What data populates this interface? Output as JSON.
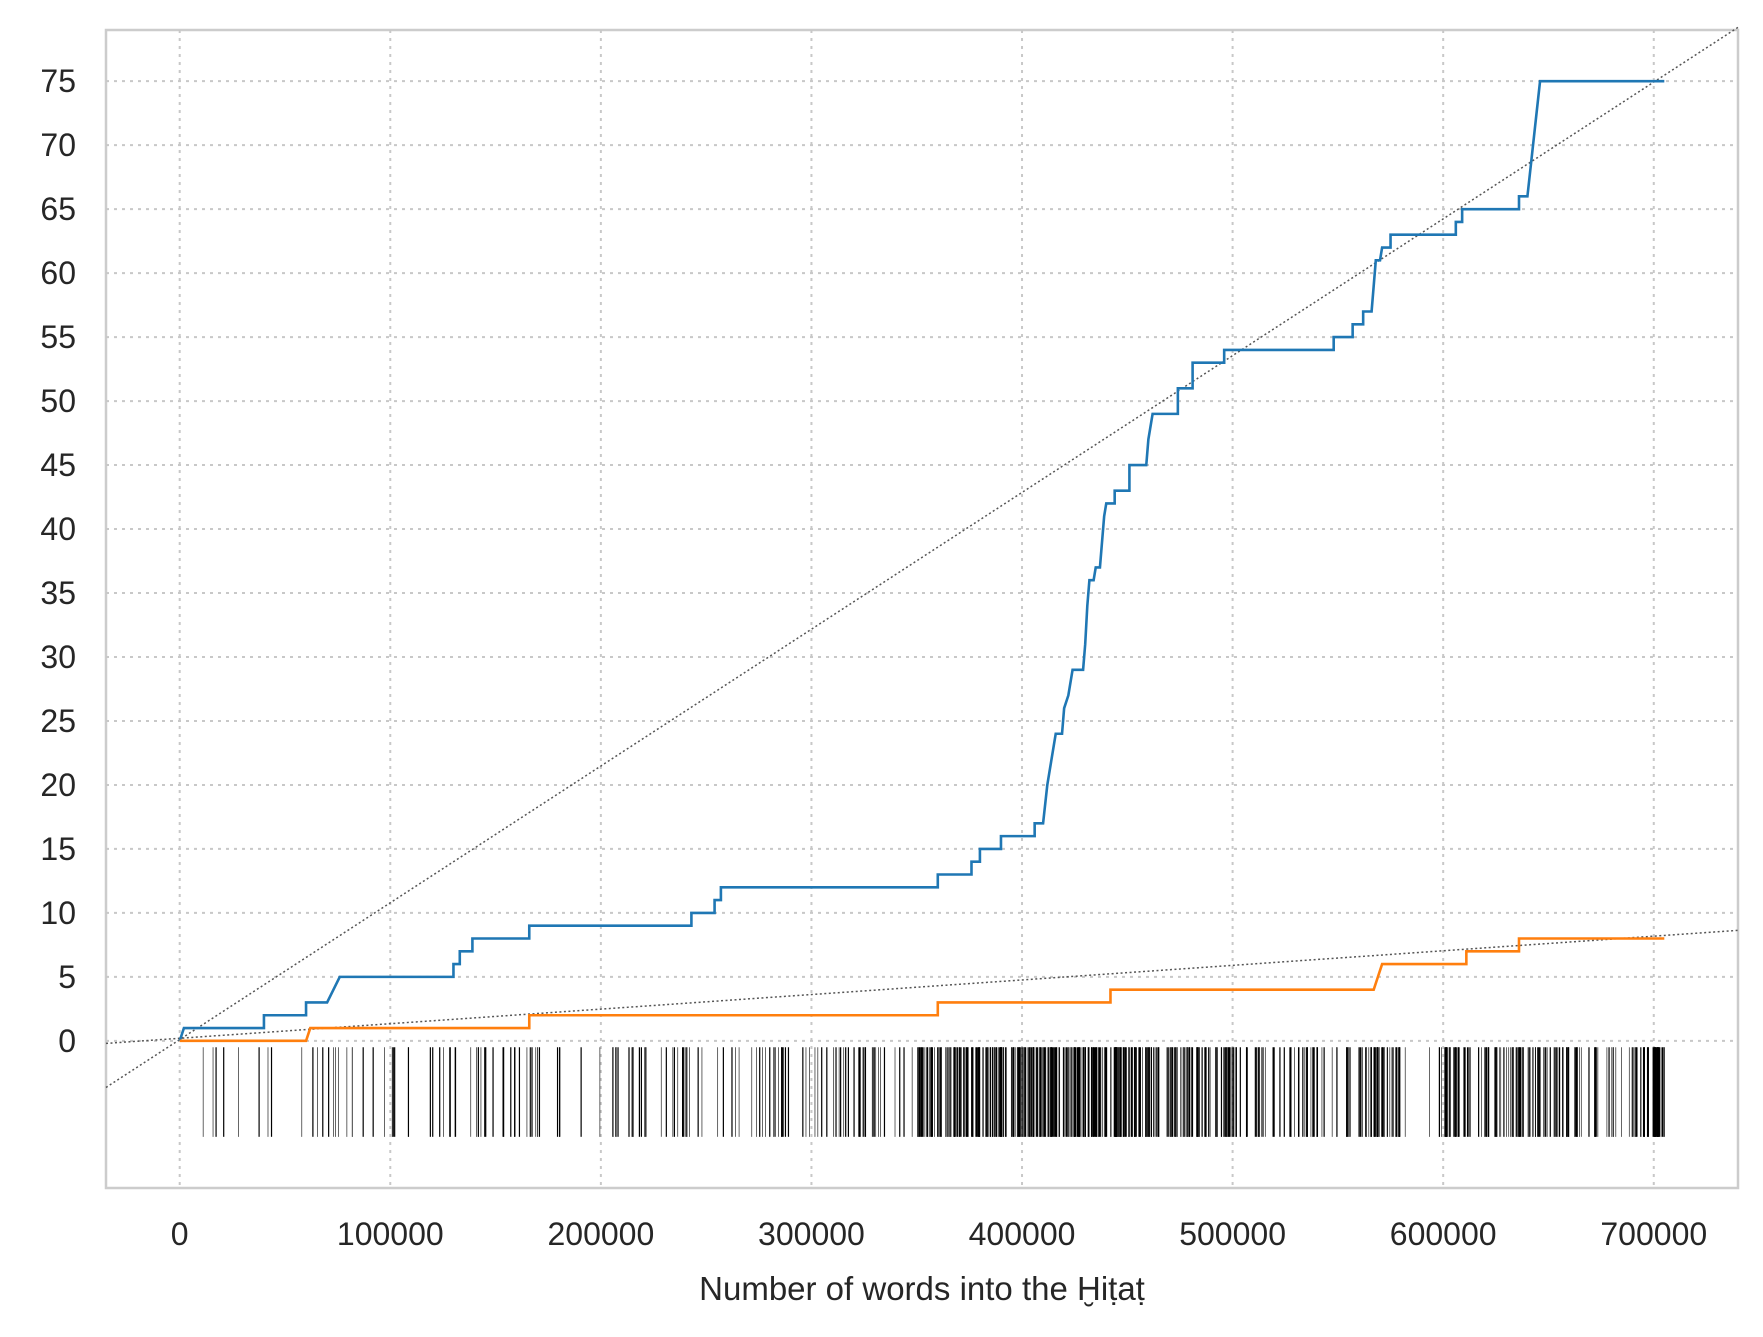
{
  "chart_data": {
    "type": "line",
    "title": "",
    "xlabel": "Number of words into the Ḫiṭaṭ",
    "ylabel": "",
    "xlim": [
      -35000,
      740000
    ],
    "ylim": [
      -11.5,
      79
    ],
    "grid": true,
    "legend": "none",
    "x_ticks": [
      0,
      100000,
      200000,
      300000,
      400000,
      500000,
      600000,
      700000
    ],
    "x_tick_labels": [
      "0",
      "100000",
      "200000",
      "300000",
      "400000",
      "500000",
      "600000",
      "700000"
    ],
    "y_ticks": [
      0,
      5,
      10,
      15,
      20,
      25,
      30,
      35,
      40,
      45,
      50,
      55,
      60,
      65,
      70,
      75
    ],
    "y_tick_labels": [
      "0",
      "5",
      "10",
      "15",
      "20",
      "25",
      "30",
      "35",
      "40",
      "45",
      "50",
      "55",
      "60",
      "65",
      "70",
      "75"
    ],
    "colors": {
      "series1": "#1f77b4",
      "series2": "#ff7f0e",
      "trend": "#555555",
      "rug": "#000000"
    },
    "series": [
      {
        "style": "step",
        "color": "#1f77b4",
        "points": [
          [
            0,
            0
          ],
          [
            2000,
            1
          ],
          [
            40000,
            1
          ],
          [
            40000,
            2
          ],
          [
            60000,
            2
          ],
          [
            60000,
            3
          ],
          [
            70000,
            3
          ],
          [
            73000,
            4
          ],
          [
            76000,
            5
          ],
          [
            130000,
            5
          ],
          [
            130000,
            6
          ],
          [
            133000,
            6
          ],
          [
            133000,
            7
          ],
          [
            139000,
            7
          ],
          [
            139000,
            8
          ],
          [
            166000,
            8
          ],
          [
            166000,
            9
          ],
          [
            243000,
            9
          ],
          [
            243000,
            10
          ],
          [
            254000,
            10
          ],
          [
            254000,
            11
          ],
          [
            257000,
            11
          ],
          [
            257000,
            12
          ],
          [
            360000,
            12
          ],
          [
            360000,
            13
          ],
          [
            376000,
            13
          ],
          [
            376000,
            14
          ],
          [
            380000,
            14
          ],
          [
            380000,
            15
          ],
          [
            390000,
            15
          ],
          [
            390000,
            16
          ],
          [
            406000,
            16
          ],
          [
            406000,
            17
          ],
          [
            410000,
            17
          ],
          [
            412000,
            20
          ],
          [
            414000,
            22
          ],
          [
            416000,
            24
          ],
          [
            419000,
            24
          ],
          [
            420000,
            26
          ],
          [
            422000,
            27
          ],
          [
            424000,
            29
          ],
          [
            429000,
            29
          ],
          [
            430000,
            31
          ],
          [
            431000,
            34
          ],
          [
            432000,
            36
          ],
          [
            434000,
            36
          ],
          [
            435000,
            37
          ],
          [
            437000,
            37
          ],
          [
            439000,
            41
          ],
          [
            440000,
            42
          ],
          [
            444000,
            42
          ],
          [
            444000,
            43
          ],
          [
            451000,
            43
          ],
          [
            451000,
            45
          ],
          [
            459000,
            45
          ],
          [
            460000,
            47
          ],
          [
            462000,
            49
          ],
          [
            474000,
            49
          ],
          [
            474000,
            51
          ],
          [
            481000,
            51
          ],
          [
            481000,
            53
          ],
          [
            496000,
            53
          ],
          [
            496000,
            54
          ],
          [
            548000,
            54
          ],
          [
            548000,
            55
          ],
          [
            557000,
            55
          ],
          [
            557000,
            56
          ],
          [
            562000,
            56
          ],
          [
            562000,
            57
          ],
          [
            566000,
            57
          ],
          [
            567000,
            59
          ],
          [
            568000,
            61
          ],
          [
            570000,
            61
          ],
          [
            571000,
            62
          ],
          [
            575000,
            62
          ],
          [
            575000,
            63
          ],
          [
            606000,
            63
          ],
          [
            606000,
            64
          ],
          [
            609000,
            64
          ],
          [
            609000,
            65
          ],
          [
            636000,
            65
          ],
          [
            636000,
            66
          ],
          [
            640000,
            66
          ],
          [
            642000,
            69
          ],
          [
            644000,
            72
          ],
          [
            646000,
            75
          ],
          [
            705000,
            75
          ]
        ]
      },
      {
        "style": "step",
        "color": "#ff7f0e",
        "points": [
          [
            0,
            0
          ],
          [
            60000,
            0
          ],
          [
            62000,
            1
          ],
          [
            166000,
            1
          ],
          [
            166000,
            2
          ],
          [
            360000,
            2
          ],
          [
            360000,
            3
          ],
          [
            442000,
            3
          ],
          [
            442000,
            4
          ],
          [
            567000,
            4
          ],
          [
            569000,
            5
          ],
          [
            571000,
            6
          ],
          [
            611000,
            6
          ],
          [
            611000,
            7
          ],
          [
            636000,
            7
          ],
          [
            636000,
            8
          ],
          [
            705000,
            8
          ]
        ]
      },
      {
        "style": "trend",
        "color": "#555555",
        "slope": 0.0001069,
        "intercept": 0.1
      },
      {
        "style": "trend",
        "color": "#555555",
        "slope": 1.14e-05,
        "intercept": 0.2
      }
    ],
    "rug": {
      "y_range": [
        -7.5,
        -0.5
      ],
      "segments": [
        [
          0,
          100000,
          22
        ],
        [
          100000,
          200000,
          40
        ],
        [
          200000,
          260000,
          30
        ],
        [
          260000,
          350000,
          50
        ],
        [
          350000,
          400000,
          110
        ],
        [
          400000,
          450000,
          130
        ],
        [
          450000,
          500000,
          90
        ],
        [
          500000,
          560000,
          50
        ],
        [
          560000,
          580000,
          40
        ],
        [
          580000,
          600000,
          5
        ],
        [
          600000,
          640000,
          60
        ],
        [
          640000,
          660000,
          30
        ],
        [
          660000,
          690000,
          25
        ],
        [
          690000,
          705000,
          40
        ]
      ]
    }
  }
}
